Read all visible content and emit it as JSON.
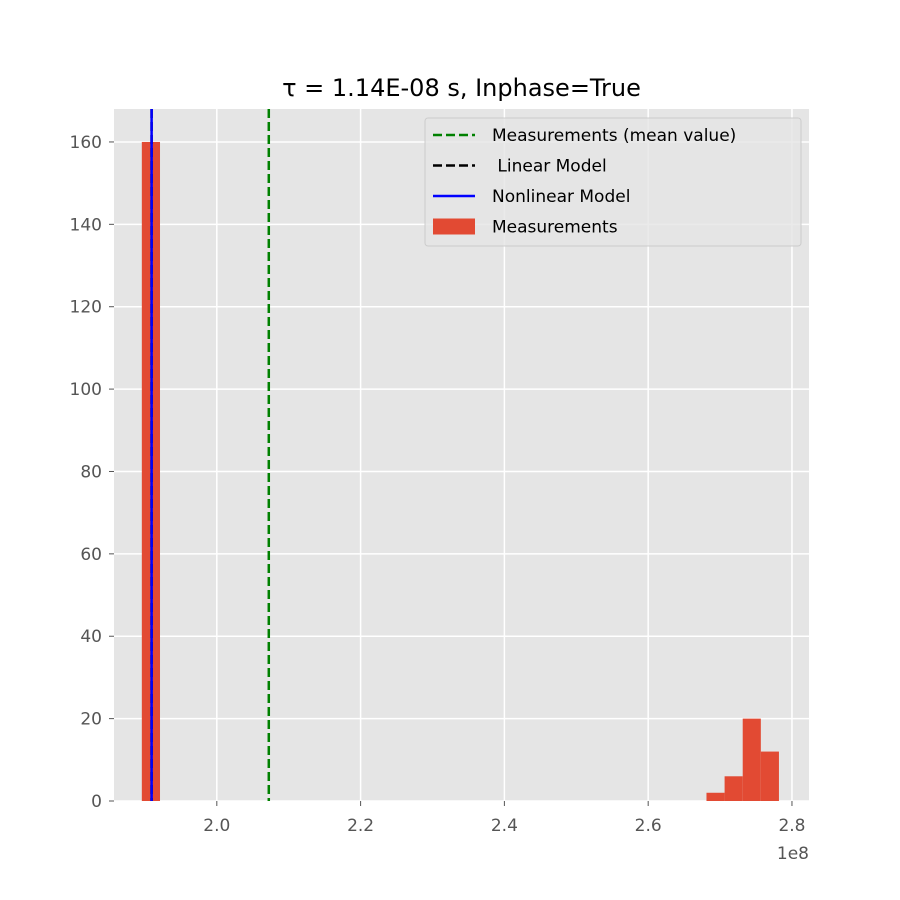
{
  "chart_data": {
    "type": "bar",
    "title": "τ = 1.14E-08 s, Inphase=True",
    "xlabel": "",
    "ylabel": "",
    "x_offset_label": "1e8",
    "x_scale": 100000000,
    "xlim": [
      1.857,
      2.8237
    ],
    "ylim": [
      0,
      168
    ],
    "xticks": [
      2.0,
      2.2,
      2.4,
      2.6,
      2.8
    ],
    "xtick_labels": [
      "2.0",
      "2.2",
      "2.4",
      "2.6",
      "2.8"
    ],
    "yticks": [
      0,
      20,
      40,
      60,
      80,
      100,
      120,
      140,
      160
    ],
    "ytick_labels": [
      "0",
      "20",
      "40",
      "60",
      "80",
      "100",
      "120",
      "140",
      "160"
    ],
    "grid": true,
    "legend_position": "top-right",
    "histogram": {
      "name": "Measurements",
      "color": "#E24A33",
      "bins": [
        {
          "x0": 1.8957,
          "x1": 1.921,
          "count": 160
        },
        {
          "x0": 2.6811,
          "x1": 2.7063,
          "count": 2
        },
        {
          "x0": 2.7063,
          "x1": 2.7315,
          "count": 6
        },
        {
          "x0": 2.7315,
          "x1": 2.7567,
          "count": 20
        },
        {
          "x0": 2.7567,
          "x1": 2.7819,
          "count": 12
        }
      ]
    },
    "vlines": [
      {
        "name": "Measurements (mean value)",
        "x": 2.0723,
        "color": "#008000",
        "style": "dashed"
      },
      {
        "name": " Linear Model",
        "x": 1.9093,
        "color": "#000000",
        "style": "dashed"
      },
      {
        "name": "Nonlinear Model",
        "x": 1.9093,
        "color": "#0000FF",
        "style": "solid"
      }
    ],
    "legend": [
      {
        "label": "Measurements (mean value)",
        "kind": "dashed-line",
        "color": "#008000"
      },
      {
        "label": " Linear Model",
        "kind": "dashed-line",
        "color": "#000000"
      },
      {
        "label": "Nonlinear Model",
        "kind": "solid-line",
        "color": "#0000FF"
      },
      {
        "label": "Measurements",
        "kind": "patch",
        "color": "#E24A33"
      }
    ],
    "colors": {
      "plot_background": "#E5E5E5",
      "grid": "#FFFFFF",
      "tick_label": "#555555"
    }
  }
}
